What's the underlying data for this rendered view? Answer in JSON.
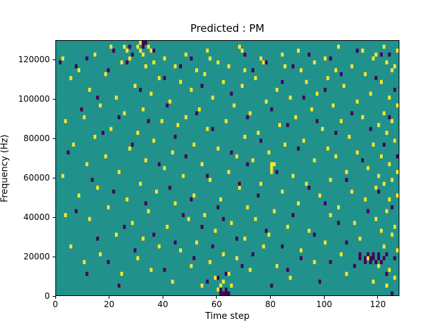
{
  "title": "Predicted : PM",
  "xlabel": "Time step",
  "ylabel": "Frequency (Hz)",
  "chart_data": {
    "type": "heatmap",
    "title": "Predicted : PM",
    "xlabel": "Time step",
    "ylabel": "Frequency (Hz)",
    "x_range": [
      0,
      128
    ],
    "y_range": [
      0,
      130000
    ],
    "x_ticks": [
      0,
      20,
      40,
      60,
      80,
      100,
      120
    ],
    "y_ticks": [
      0,
      20000,
      40000,
      60000,
      80000,
      100000,
      120000
    ],
    "grid": {
      "cols": 128,
      "rows": 65,
      "cell_hz": 2000
    },
    "legend_position": "none",
    "gridlines": false,
    "colors": {
      "base": "#21918c",
      "high": "#fde725",
      "low": "#440154",
      "axis": "#000000",
      "background": "#ffffff"
    },
    "high_cells": [
      [
        2,
        60
      ],
      [
        2,
        30
      ],
      [
        3,
        44
      ],
      [
        3,
        20
      ],
      [
        5,
        55
      ],
      [
        5,
        12
      ],
      [
        6,
        38
      ],
      [
        8,
        25
      ],
      [
        8,
        57
      ],
      [
        10,
        45
      ],
      [
        10,
        8
      ],
      [
        11,
        33
      ],
      [
        12,
        52
      ],
      [
        12,
        19
      ],
      [
        14,
        61
      ],
      [
        14,
        40
      ],
      [
        15,
        27
      ],
      [
        16,
        48
      ],
      [
        16,
        10
      ],
      [
        18,
        56
      ],
      [
        18,
        35
      ],
      [
        19,
        22
      ],
      [
        20,
        42
      ],
      [
        20,
        63
      ],
      [
        22,
        15
      ],
      [
        22,
        50
      ],
      [
        23,
        31
      ],
      [
        24,
        59
      ],
      [
        24,
        5
      ],
      [
        25,
        63
      ],
      [
        25,
        46
      ],
      [
        26,
        62
      ],
      [
        26,
        24
      ],
      [
        27,
        60
      ],
      [
        27,
        37
      ],
      [
        28,
        18
      ],
      [
        29,
        53
      ],
      [
        30,
        63
      ],
      [
        30,
        41
      ],
      [
        30,
        9
      ],
      [
        31,
        64
      ],
      [
        31,
        62
      ],
      [
        31,
        28
      ],
      [
        32,
        61
      ],
      [
        32,
        47
      ],
      [
        32,
        14
      ],
      [
        33,
        58
      ],
      [
        33,
        34
      ],
      [
        34,
        63
      ],
      [
        34,
        21
      ],
      [
        35,
        62
      ],
      [
        35,
        51
      ],
      [
        35,
        6
      ],
      [
        36,
        59
      ],
      [
        36,
        39
      ],
      [
        37,
        26
      ],
      [
        38,
        55
      ],
      [
        38,
        12
      ],
      [
        39,
        44
      ],
      [
        40,
        60
      ],
      [
        40,
        32
      ],
      [
        41,
        17
      ],
      [
        42,
        49
      ],
      [
        43,
        36
      ],
      [
        43,
        3
      ],
      [
        44,
        58
      ],
      [
        44,
        23
      ],
      [
        45,
        43
      ],
      [
        46,
        54
      ],
      [
        46,
        11
      ],
      [
        47,
        30
      ],
      [
        48,
        61
      ],
      [
        48,
        45
      ],
      [
        49,
        19
      ],
      [
        50,
        52
      ],
      [
        50,
        7
      ],
      [
        51,
        38
      ],
      [
        51,
        25
      ],
      [
        52,
        57
      ],
      [
        52,
        13
      ],
      [
        53,
        47
      ],
      [
        54,
        33
      ],
      [
        54,
        2
      ],
      [
        55,
        56
      ],
      [
        55,
        20
      ],
      [
        56,
        62
      ],
      [
        56,
        42
      ],
      [
        57,
        60
      ],
      [
        57,
        29
      ],
      [
        57,
        8
      ],
      [
        58,
        50
      ],
      [
        59,
        16
      ],
      [
        59,
        4
      ],
      [
        60,
        59
      ],
      [
        60,
        37
      ],
      [
        60,
        1
      ],
      [
        61,
        24
      ],
      [
        61,
        2
      ],
      [
        62,
        54
      ],
      [
        62,
        10
      ],
      [
        62,
        3
      ],
      [
        63,
        44
      ],
      [
        63,
        1
      ],
      [
        64,
        58
      ],
      [
        64,
        31
      ],
      [
        64,
        5
      ],
      [
        65,
        18
      ],
      [
        65,
        2
      ],
      [
        66,
        48
      ],
      [
        67,
        35
      ],
      [
        67,
        9
      ],
      [
        68,
        63
      ],
      [
        68,
        27
      ],
      [
        69,
        62
      ],
      [
        69,
        53
      ],
      [
        70,
        57
      ],
      [
        70,
        40
      ],
      [
        70,
        14
      ],
      [
        71,
        22
      ],
      [
        72,
        46
      ],
      [
        72,
        6
      ],
      [
        73,
        34
      ],
      [
        74,
        55
      ],
      [
        74,
        19
      ],
      [
        75,
        41
      ],
      [
        76,
        60
      ],
      [
        76,
        28
      ],
      [
        77,
        59
      ],
      [
        77,
        12
      ],
      [
        78,
        49
      ],
      [
        79,
        36
      ],
      [
        79,
        15
      ],
      [
        80,
        33
      ],
      [
        80,
        32
      ],
      [
        80,
        31
      ],
      [
        81,
        33
      ],
      [
        81,
        21
      ],
      [
        82,
        52
      ],
      [
        82,
        7
      ],
      [
        83,
        43
      ],
      [
        84,
        61
      ],
      [
        84,
        26
      ],
      [
        85,
        58
      ],
      [
        85,
        38
      ],
      [
        86,
        17
      ],
      [
        87,
        50
      ],
      [
        87,
        4
      ],
      [
        88,
        30
      ],
      [
        89,
        45
      ],
      [
        90,
        62
      ],
      [
        90,
        23
      ],
      [
        91,
        57
      ],
      [
        91,
        11
      ],
      [
        92,
        39
      ],
      [
        93,
        54
      ],
      [
        93,
        28
      ],
      [
        94,
        16
      ],
      [
        95,
        47
      ],
      [
        96,
        59
      ],
      [
        96,
        34
      ],
      [
        96,
        8
      ],
      [
        97,
        51
      ],
      [
        98,
        25
      ],
      [
        99,
        42
      ],
      [
        100,
        60
      ],
      [
        100,
        13
      ],
      [
        101,
        55
      ],
      [
        101,
        37
      ],
      [
        102,
        29
      ],
      [
        102,
        20
      ],
      [
        103,
        48
      ],
      [
        104,
        57
      ],
      [
        104,
        35
      ],
      [
        105,
        63
      ],
      [
        105,
        22
      ],
      [
        106,
        44
      ],
      [
        106,
        10
      ],
      [
        107,
        53
      ],
      [
        108,
        31
      ],
      [
        108,
        5
      ],
      [
        109,
        40
      ],
      [
        110,
        58
      ],
      [
        110,
        26
      ],
      [
        111,
        18
      ],
      [
        112,
        49
      ],
      [
        112,
        36
      ],
      [
        113,
        14
      ],
      [
        114,
        62
      ],
      [
        114,
        45
      ],
      [
        115,
        56
      ],
      [
        115,
        24
      ],
      [
        116,
        32
      ],
      [
        116,
        9
      ],
      [
        117,
        51
      ],
      [
        118,
        60
      ],
      [
        118,
        38
      ],
      [
        118,
        3
      ],
      [
        119,
        61
      ],
      [
        119,
        27
      ],
      [
        119,
        19
      ],
      [
        120,
        43
      ],
      [
        120,
        30
      ],
      [
        120,
        7
      ],
      [
        121,
        54
      ],
      [
        121,
        35
      ],
      [
        121,
        16
      ],
      [
        122,
        63
      ],
      [
        122,
        46
      ],
      [
        122,
        28
      ],
      [
        122,
        12
      ],
      [
        123,
        59
      ],
      [
        123,
        41
      ],
      [
        123,
        21
      ],
      [
        123,
        2
      ],
      [
        124,
        50
      ],
      [
        124,
        33
      ],
      [
        124,
        24
      ],
      [
        124,
        6
      ],
      [
        125,
        57
      ],
      [
        125,
        44
      ],
      [
        125,
        29
      ],
      [
        125,
        15
      ],
      [
        126,
        58
      ],
      [
        126,
        39
      ],
      [
        126,
        17
      ],
      [
        126,
        4
      ],
      [
        127,
        62
      ],
      [
        127,
        48
      ],
      [
        127,
        31
      ],
      [
        127,
        25
      ],
      [
        127,
        11
      ]
    ],
    "low_cells": [
      [
        1,
        59
      ],
      [
        4,
        36
      ],
      [
        7,
        21
      ],
      [
        7,
        58
      ],
      [
        9,
        47
      ],
      [
        11,
        60
      ],
      [
        11,
        5
      ],
      [
        13,
        29
      ],
      [
        15,
        50
      ],
      [
        15,
        14
      ],
      [
        17,
        41
      ],
      [
        19,
        57
      ],
      [
        19,
        8
      ],
      [
        21,
        26
      ],
      [
        21,
        62
      ],
      [
        23,
        45
      ],
      [
        23,
        2
      ],
      [
        25,
        17
      ],
      [
        26,
        59
      ],
      [
        27,
        63
      ],
      [
        28,
        61
      ],
      [
        28,
        38
      ],
      [
        29,
        11
      ],
      [
        31,
        52
      ],
      [
        32,
        64
      ],
      [
        32,
        63
      ],
      [
        33,
        64
      ],
      [
        33,
        23
      ],
      [
        34,
        44
      ],
      [
        36,
        62
      ],
      [
        36,
        15
      ],
      [
        38,
        33
      ],
      [
        40,
        55
      ],
      [
        40,
        6
      ],
      [
        41,
        48
      ],
      [
        42,
        27
      ],
      [
        44,
        40
      ],
      [
        44,
        13
      ],
      [
        46,
        58
      ],
      [
        47,
        20
      ],
      [
        48,
        35
      ],
      [
        50,
        60
      ],
      [
        50,
        24
      ],
      [
        51,
        9
      ],
      [
        52,
        46
      ],
      [
        54,
        53
      ],
      [
        54,
        17
      ],
      [
        56,
        30
      ],
      [
        56,
        3
      ],
      [
        58,
        42
      ],
      [
        58,
        12
      ],
      [
        60,
        22
      ],
      [
        60,
        4
      ],
      [
        61,
        1
      ],
      [
        61,
        0
      ],
      [
        62,
        19
      ],
      [
        62,
        0
      ],
      [
        63,
        5
      ],
      [
        63,
        1
      ],
      [
        63,
        0
      ],
      [
        64,
        0
      ],
      [
        65,
        51
      ],
      [
        65,
        36
      ],
      [
        67,
        14
      ],
      [
        68,
        28
      ],
      [
        69,
        7
      ],
      [
        70,
        61
      ],
      [
        71,
        45
      ],
      [
        71,
        33
      ],
      [
        73,
        57
      ],
      [
        73,
        10
      ],
      [
        75,
        25
      ],
      [
        76,
        39
      ],
      [
        78,
        59
      ],
      [
        78,
        16
      ],
      [
        80,
        47
      ],
      [
        80,
        2
      ],
      [
        82,
        31
      ],
      [
        84,
        54
      ],
      [
        84,
        12
      ],
      [
        86,
        43
      ],
      [
        86,
        6
      ],
      [
        88,
        58
      ],
      [
        88,
        20
      ],
      [
        90,
        37
      ],
      [
        91,
        9
      ],
      [
        92,
        50
      ],
      [
        94,
        61
      ],
      [
        94,
        27
      ],
      [
        96,
        15
      ],
      [
        97,
        44
      ],
      [
        98,
        3
      ],
      [
        100,
        52
      ],
      [
        100,
        23
      ],
      [
        102,
        60
      ],
      [
        102,
        8
      ],
      [
        104,
        41
      ],
      [
        105,
        18
      ],
      [
        106,
        56
      ],
      [
        108,
        29
      ],
      [
        108,
        13
      ],
      [
        110,
        46
      ],
      [
        111,
        7
      ],
      [
        112,
        62
      ],
      [
        113,
        10
      ],
      [
        113,
        9
      ],
      [
        114,
        34
      ],
      [
        115,
        9
      ],
      [
        115,
        8
      ],
      [
        116,
        21
      ],
      [
        116,
        10
      ],
      [
        117,
        42
      ],
      [
        117,
        9
      ],
      [
        117,
        8
      ],
      [
        118,
        10
      ],
      [
        118,
        9
      ],
      [
        119,
        55
      ],
      [
        119,
        8
      ],
      [
        120,
        26
      ],
      [
        120,
        10
      ],
      [
        120,
        9
      ],
      [
        121,
        61
      ],
      [
        121,
        8
      ],
      [
        122,
        38
      ],
      [
        122,
        9
      ],
      [
        123,
        10
      ],
      [
        123,
        5
      ],
      [
        124,
        61
      ],
      [
        124,
        45
      ],
      [
        125,
        22
      ],
      [
        125,
        0
      ],
      [
        126,
        52
      ],
      [
        126,
        9
      ],
      [
        127,
        35
      ]
    ]
  }
}
